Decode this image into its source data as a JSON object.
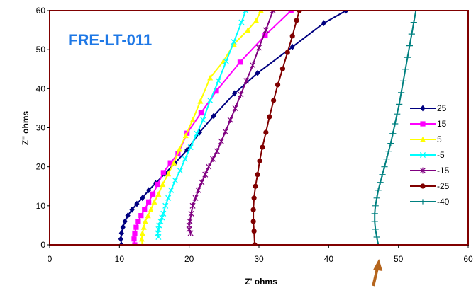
{
  "chart_data": {
    "type": "scatter",
    "xlabel": "Z' ohms",
    "ylabel": "Z'' ohms",
    "xlim": [
      0,
      60
    ],
    "ylim": [
      0,
      60
    ],
    "xticks": [
      "0",
      "10",
      "20",
      "30",
      "40",
      "50",
      "60"
    ],
    "yticks": [
      "0",
      "10",
      "20",
      "30",
      "40",
      "50",
      "60"
    ],
    "grid": false,
    "legend_position": "right",
    "annotation": {
      "text": "FRE-LT-011",
      "color": "#1e78e6"
    },
    "arrow": {
      "x": 46.8,
      "color": "#b5651d"
    },
    "series": [
      {
        "name": "25",
        "color": "#000080",
        "marker": "diamond",
        "points": [
          [
            10.3,
            0
          ],
          [
            10.2,
            1.5
          ],
          [
            10.3,
            3
          ],
          [
            10.5,
            4.5
          ],
          [
            10.8,
            6
          ],
          [
            11.2,
            7.5
          ],
          [
            11.8,
            9
          ],
          [
            12.5,
            10.5
          ],
          [
            13.3,
            12
          ],
          [
            14.2,
            14
          ],
          [
            15.2,
            15.8
          ],
          [
            16.5,
            18.2
          ],
          [
            18,
            21
          ],
          [
            19.7,
            24.3
          ],
          [
            21.5,
            28.8
          ],
          [
            23.5,
            33
          ],
          [
            26.5,
            38.8
          ],
          [
            29.8,
            44
          ],
          [
            34.8,
            50.7
          ],
          [
            39.3,
            56.8
          ],
          [
            42.5,
            60
          ]
        ]
      },
      {
        "name": "15",
        "color": "#ff00ff",
        "marker": "square",
        "points": [
          [
            12.2,
            0
          ],
          [
            12.1,
            1.5
          ],
          [
            12.2,
            3
          ],
          [
            12.4,
            4.5
          ],
          [
            12.7,
            6
          ],
          [
            13.1,
            7.5
          ],
          [
            13.6,
            9
          ],
          [
            14.2,
            11
          ],
          [
            14.8,
            13
          ],
          [
            15.5,
            15.5
          ],
          [
            16.3,
            18.5
          ],
          [
            17.3,
            21
          ],
          [
            18.4,
            23.3
          ],
          [
            19.7,
            28.6
          ],
          [
            21.7,
            33.8
          ],
          [
            23.9,
            39.4
          ],
          [
            27.3,
            46.8
          ],
          [
            30.9,
            53.7
          ],
          [
            34.6,
            60
          ]
        ]
      },
      {
        "name": "5",
        "color": "#ffff00",
        "marker": "triangle",
        "points": [
          [
            13.3,
            0
          ],
          [
            13.2,
            1.5
          ],
          [
            13.3,
            3
          ],
          [
            13.5,
            4.5
          ],
          [
            13.7,
            6
          ],
          [
            14.1,
            7.5
          ],
          [
            14.5,
            9
          ],
          [
            15,
            11
          ],
          [
            15.6,
            13
          ],
          [
            16.2,
            15.5
          ],
          [
            17,
            18.2
          ],
          [
            17.8,
            21
          ],
          [
            18.6,
            24.5
          ],
          [
            19.5,
            28
          ],
          [
            20.5,
            32
          ],
          [
            21.6,
            36.8
          ],
          [
            23,
            42.8
          ],
          [
            24.9,
            47
          ],
          [
            26.4,
            51.4
          ],
          [
            28.4,
            55
          ],
          [
            29.6,
            57.5
          ],
          [
            30.3,
            60
          ]
        ]
      },
      {
        "name": "-5",
        "color": "#00ffff",
        "marker": "x",
        "points": [
          [
            15.6,
            2
          ],
          [
            15.5,
            3
          ],
          [
            15.6,
            4
          ],
          [
            15.7,
            5
          ],
          [
            15.9,
            6
          ],
          [
            16.1,
            7
          ],
          [
            16.3,
            8
          ],
          [
            16.6,
            10
          ],
          [
            17,
            12
          ],
          [
            17.4,
            14
          ],
          [
            18,
            16.5
          ],
          [
            18.7,
            19
          ],
          [
            19.4,
            22
          ],
          [
            20.2,
            25
          ],
          [
            21.1,
            28.5
          ],
          [
            22,
            32
          ],
          [
            23,
            37
          ],
          [
            24.2,
            42
          ],
          [
            25.3,
            47
          ],
          [
            26.4,
            52
          ],
          [
            27.5,
            57
          ],
          [
            28.1,
            60
          ]
        ]
      },
      {
        "name": "-15",
        "color": "#800080",
        "marker": "asterisk",
        "points": [
          [
            20.2,
            3
          ],
          [
            20,
            4
          ],
          [
            20,
            5
          ],
          [
            20.1,
            6
          ],
          [
            20.3,
            8
          ],
          [
            20.5,
            10
          ],
          [
            20.9,
            12
          ],
          [
            21.3,
            14
          ],
          [
            21.8,
            16
          ],
          [
            22.3,
            18
          ],
          [
            22.8,
            20
          ],
          [
            23.4,
            22
          ],
          [
            24,
            24
          ],
          [
            24.6,
            26.5
          ],
          [
            25.2,
            29
          ],
          [
            25.9,
            32
          ],
          [
            26.6,
            35
          ],
          [
            27.4,
            38.5
          ],
          [
            28.2,
            42
          ],
          [
            29.1,
            46
          ],
          [
            30,
            50.5
          ],
          [
            31,
            55
          ],
          [
            32,
            60
          ]
        ]
      },
      {
        "name": "-25",
        "color": "#800000",
        "marker": "circle",
        "points": [
          [
            29.4,
            0
          ],
          [
            29.3,
            3.5
          ],
          [
            29.2,
            6
          ],
          [
            29.2,
            9
          ],
          [
            29.3,
            12
          ],
          [
            29.5,
            15
          ],
          [
            29.8,
            18
          ],
          [
            30.1,
            21.5
          ],
          [
            30.5,
            25
          ],
          [
            31,
            28.8
          ],
          [
            31.5,
            32.8
          ],
          [
            32.1,
            37
          ],
          [
            32.7,
            41
          ],
          [
            33.4,
            45.1
          ],
          [
            34.1,
            49.3
          ],
          [
            34.8,
            53.5
          ],
          [
            35.4,
            57.5
          ],
          [
            35.8,
            60
          ]
        ]
      },
      {
        "name": "-40",
        "color": "#008080",
        "marker": "plus",
        "points": [
          [
            47.1,
            0
          ],
          [
            46.9,
            2
          ],
          [
            46.7,
            4
          ],
          [
            46.6,
            6
          ],
          [
            46.6,
            8
          ],
          [
            46.7,
            10
          ],
          [
            46.9,
            12
          ],
          [
            47.1,
            14
          ],
          [
            47.4,
            16
          ],
          [
            47.7,
            18
          ],
          [
            48,
            20
          ],
          [
            48.3,
            22
          ],
          [
            48.6,
            24
          ],
          [
            48.9,
            26
          ],
          [
            49.2,
            28.5
          ],
          [
            49.5,
            31
          ],
          [
            49.8,
            33.5
          ],
          [
            50.1,
            36
          ],
          [
            50.4,
            39
          ],
          [
            50.7,
            42
          ],
          [
            51,
            45
          ],
          [
            51.3,
            48
          ],
          [
            51.6,
            51
          ],
          [
            51.9,
            54
          ],
          [
            52.2,
            57
          ],
          [
            52.5,
            60
          ]
        ]
      }
    ]
  }
}
